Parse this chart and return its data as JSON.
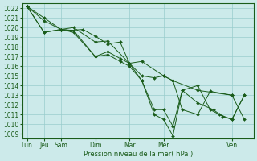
{
  "background_color": "#cceaea",
  "grid_color": "#99cccc",
  "line_color": "#1a5c1a",
  "xlabel": "Pression niveau de la mer( hPa )",
  "ylim": [
    1008.5,
    1022.5
  ],
  "yticks": [
    1009,
    1010,
    1011,
    1012,
    1013,
    1014,
    1015,
    1016,
    1017,
    1018,
    1019,
    1020,
    1021,
    1022
  ],
  "xtick_labels": [
    "Lun",
    "Jeu",
    "Sam",
    "Dim",
    "Mar",
    "Mer",
    "Ven"
  ],
  "xtick_positions": [
    0,
    0.55,
    1.1,
    2.2,
    3.3,
    4.4,
    6.6
  ],
  "xlim": [
    -0.15,
    7.3
  ],
  "lines_x": [
    [
      0,
      0.55,
      1.1,
      1.5,
      2.2,
      2.6,
      3.3,
      3.7,
      4.4,
      4.7,
      5.5,
      6.6
    ],
    [
      0,
      0.55,
      1.1,
      1.4,
      1.8,
      2.2,
      2.6,
      3.0,
      3.3,
      3.7,
      4.1,
      4.4,
      4.7,
      5.0,
      5.5,
      5.9,
      6.6,
      7.0
    ],
    [
      0,
      0.55,
      1.1,
      1.5,
      2.2,
      2.6,
      3.0,
      3.3,
      3.7,
      4.1,
      4.4,
      4.7,
      5.0,
      5.5,
      5.9,
      6.2,
      6.6,
      7.0
    ],
    [
      0,
      0.55,
      1.1,
      1.5,
      2.2,
      2.6,
      3.0,
      3.3,
      3.7,
      4.1,
      4.4,
      4.7,
      5.0,
      5.5,
      6.0,
      6.3,
      6.6,
      7.0
    ]
  ],
  "lines_y": [
    [
      1022.2,
      1021.0,
      1019.8,
      1020.0,
      1018.5,
      1018.6,
      1016.3,
      1016.5,
      1015.0,
      1014.5,
      1013.5,
      1013.0
    ],
    [
      1022.2,
      1020.7,
      1019.8,
      1019.7,
      1019.8,
      1019.1,
      1018.3,
      1018.5,
      1016.3,
      1015.0,
      1014.8,
      1015.0,
      1014.5,
      1011.5,
      1011.0,
      1013.4,
      1013.0,
      1010.5
    ],
    [
      1022.2,
      1019.5,
      1019.8,
      1019.7,
      1017.0,
      1017.5,
      1016.8,
      1016.3,
      1014.5,
      1011.5,
      1011.5,
      1009.8,
      1013.5,
      1014.0,
      1011.5,
      1011.0,
      1010.5,
      1013.0
    ],
    [
      1022.2,
      1019.5,
      1019.8,
      1019.5,
      1017.0,
      1017.2,
      1016.5,
      1016.0,
      1014.5,
      1011.0,
      1010.5,
      1008.8,
      1013.5,
      1012.2,
      1011.5,
      1010.8,
      1010.5,
      1013.0
    ]
  ],
  "linewidth": 0.7,
  "markersize": 2.0,
  "label_fontsize": 5.5,
  "xlabel_fontsize": 6.0,
  "xtick_fontsize": 5.5
}
